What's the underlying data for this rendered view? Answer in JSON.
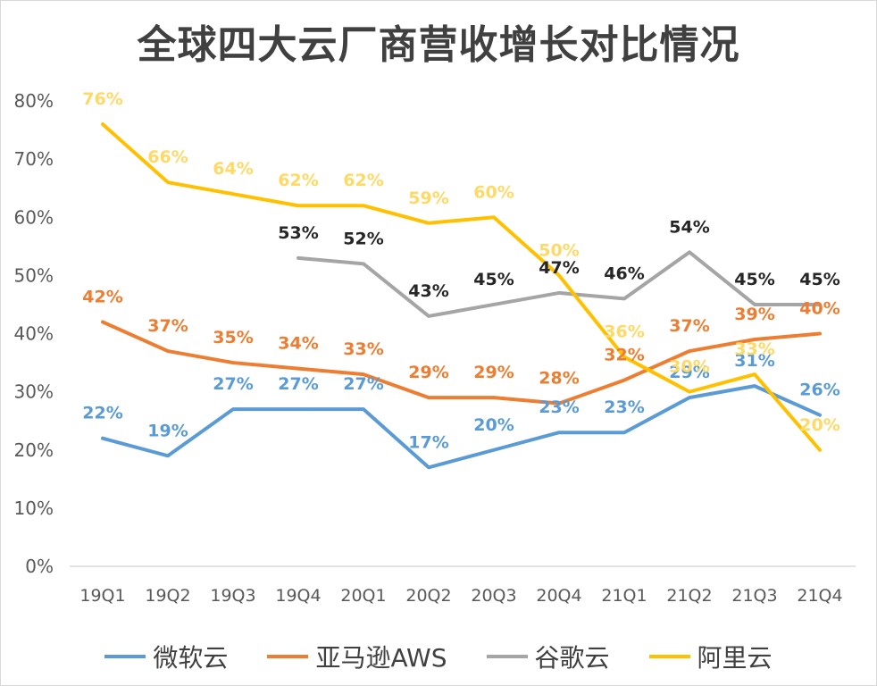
{
  "chart_data": {
    "type": "line",
    "title": "全球四大云厂商营收增长对比情况",
    "categories": [
      "19Q1",
      "19Q2",
      "19Q3",
      "19Q4",
      "20Q1",
      "20Q2",
      "20Q3",
      "20Q4",
      "21Q1",
      "21Q2",
      "21Q3",
      "21Q4"
    ],
    "y_ticks": [
      "0%",
      "10%",
      "20%",
      "30%",
      "40%",
      "50%",
      "60%",
      "70%",
      "80%"
    ],
    "ylim": [
      0,
      80
    ],
    "grid": false,
    "legend_position": "bottom",
    "series": [
      {
        "name": "微软云",
        "color": "#5b9bd5",
        "label_color": "#5b9bd5",
        "values": [
          22,
          19,
          27,
          27,
          27,
          17,
          20,
          23,
          23,
          29,
          31,
          26
        ],
        "labels": [
          "22%",
          "19%",
          "27%",
          "27%",
          "27%",
          "17%",
          "20%",
          "23%",
          "23%",
          "29%",
          "31%",
          "26%"
        ]
      },
      {
        "name": "亚马逊AWS",
        "color": "#ed7d31",
        "label_color": "#ed7d31",
        "values": [
          42,
          37,
          35,
          34,
          33,
          29,
          29,
          28,
          32,
          37,
          39,
          40
        ],
        "labels": [
          "42%",
          "37%",
          "35%",
          "34%",
          "33%",
          "29%",
          "29%",
          "28%",
          "32%",
          "37%",
          "39%",
          "40%"
        ]
      },
      {
        "name": "谷歌云",
        "color": "#a5a5a5",
        "label_color": "#262626",
        "values": [
          null,
          null,
          null,
          53,
          52,
          43,
          45,
          47,
          46,
          54,
          45,
          45
        ],
        "labels": [
          null,
          null,
          null,
          "53%",
          "52%",
          "43%",
          "45%",
          "47%",
          "46%",
          "54%",
          "45%",
          "45%"
        ]
      },
      {
        "name": "阿里云",
        "color": "#ffc000",
        "label_color": "#ffd966",
        "values": [
          76,
          66,
          64,
          62,
          62,
          59,
          60,
          50,
          36,
          30,
          33,
          20
        ],
        "labels": [
          "76%",
          "66%",
          "64%",
          "62%",
          "62%",
          "59%",
          "60%",
          "50%",
          "36%",
          "30%",
          "33%",
          "20%"
        ]
      }
    ]
  }
}
